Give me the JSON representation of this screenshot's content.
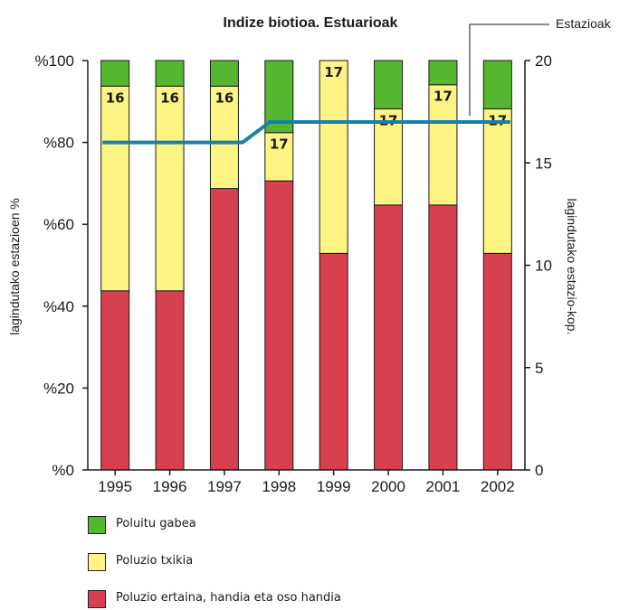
{
  "chart_data": {
    "type": "bar",
    "title": "Indize biotioa. Estuarioak",
    "ylabel": "lagindutako estazioen %",
    "y2label": "lagindutako estazio-kop.",
    "ylim": [
      0,
      100
    ],
    "y2lim": [
      0,
      20
    ],
    "yticks": [
      "%0",
      "%20",
      "%40",
      "%60",
      "%80",
      "%100"
    ],
    "y2ticks": [
      "0",
      "5",
      "10",
      "15",
      "20"
    ],
    "categories": [
      "1995",
      "1996",
      "1997",
      "1998",
      "1999",
      "2000",
      "2001",
      "2002"
    ],
    "stacked": true,
    "series": [
      {
        "name": "Poluzio ertaina, handia eta oso handia",
        "color": "#d7404e",
        "values": [
          43.75,
          43.75,
          68.75,
          70.6,
          52.9,
          64.7,
          64.7,
          52.9
        ]
      },
      {
        "name": "Poluzio txikia",
        "color": "#fdf484",
        "values": [
          50,
          50,
          25,
          11.8,
          47.1,
          23.5,
          29.4,
          35.3
        ]
      },
      {
        "name": "Poluitu gabea",
        "color": "#55b630",
        "values": [
          6.25,
          6.25,
          6.25,
          17.6,
          0,
          11.8,
          5.9,
          11.8
        ]
      }
    ],
    "line_series": {
      "name": "Estazioak",
      "color": "#1a7fa6",
      "axis": "y2",
      "values": [
        16,
        16,
        16,
        17,
        17,
        17,
        17,
        17
      ]
    },
    "bar_labels": [
      "16",
      "16",
      "16",
      "17",
      "17",
      "17",
      "17",
      "17"
    ],
    "grid": false
  },
  "legend": {
    "items": [
      {
        "label": "Poluitu gabea",
        "color": "#55b630"
      },
      {
        "label": "Poluzio txikia",
        "color": "#fdf484"
      },
      {
        "label": "Poluzio ertaina, handia eta oso handia",
        "color": "#d7404e"
      }
    ]
  }
}
